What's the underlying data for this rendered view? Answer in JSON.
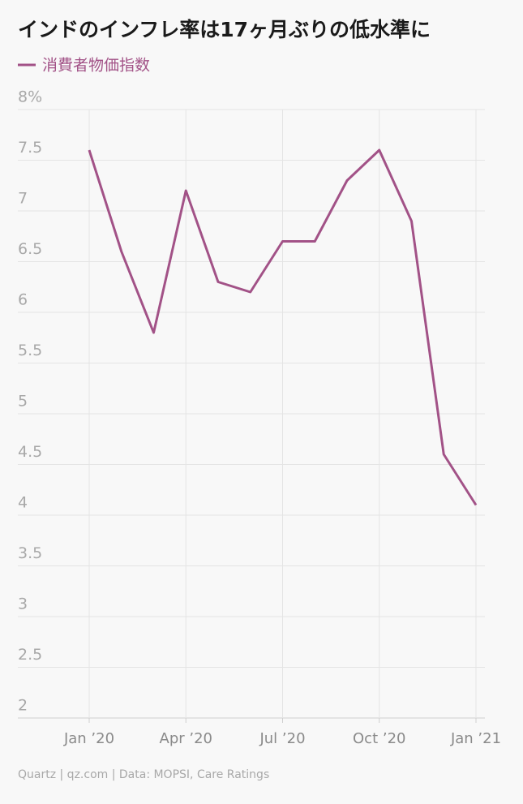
{
  "chart_data": {
    "type": "line",
    "title": "インドのインフレ率は17ヶ月ぶりの低水準に",
    "categories": [
      "Jan ’20",
      null,
      null,
      "Apr ’20",
      null,
      null,
      "Jul ’20",
      null,
      null,
      "Oct ’20",
      null,
      null,
      "Jan ’21"
    ],
    "series": [
      {
        "name": "消費者物価指数",
        "color": "#a25287",
        "values": [
          7.6,
          6.6,
          5.8,
          7.2,
          6.3,
          6.2,
          6.7,
          6.7,
          7.3,
          7.6,
          6.9,
          4.6,
          4.1
        ]
      }
    ],
    "ylim": [
      2,
      8
    ],
    "yticks": [
      2,
      2.5,
      3,
      3.5,
      4,
      4.5,
      5,
      5.5,
      6,
      6.5,
      7,
      7.5,
      {
        "value": 8,
        "label": "8%"
      }
    ],
    "grid": true,
    "source": "Quartz | qz.com | Data: MOPSI, Care Ratings"
  }
}
